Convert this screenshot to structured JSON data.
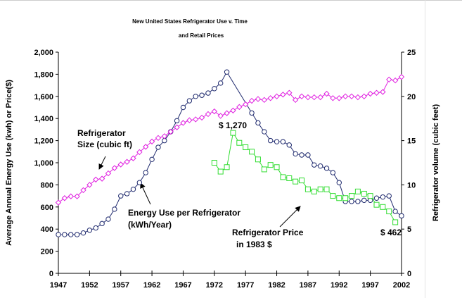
{
  "chart_data": {
    "type": "line",
    "title": [
      "New United States Refrigerator Use v. Time",
      "and Retail Prices"
    ],
    "y_label": "Average Annual Energy Use (kwh) or Price($)",
    "y2_label": "Refrigerator volume (cubic feet)",
    "xlim": [
      1947,
      2002
    ],
    "xticks": [
      1947,
      1952,
      1957,
      1962,
      1967,
      1972,
      1977,
      1982,
      1987,
      1992,
      1997,
      2002
    ],
    "ylim": [
      0,
      2000
    ],
    "yticks": [
      0,
      200,
      400,
      600,
      800,
      {
        "value": 1000,
        "label": "1,000"
      },
      {
        "value": 1200,
        "label": "1,200"
      },
      {
        "value": 1400,
        "label": "1,400"
      },
      {
        "value": 1600,
        "label": "1,600"
      },
      {
        "value": 1800,
        "label": "1,800"
      },
      {
        "value": 2000,
        "label": "2,000"
      }
    ],
    "y2lim": [
      0,
      25
    ],
    "y2ticks": [
      0,
      5,
      10,
      15,
      20,
      25
    ],
    "series": [
      {
        "name": "Energy Use per Refrigerator",
        "color": "#1f2a6e",
        "marker": "circle",
        "x": [
          1947,
          1948,
          1949,
          1950,
          1951,
          1952,
          1953,
          1954,
          1955,
          1956,
          1957,
          1958,
          1959,
          1960,
          1961,
          1962,
          1963,
          1964,
          1965,
          1966,
          1967,
          1968,
          1969,
          1970,
          1971,
          1972,
          1973,
          1974,
          1978,
          1979,
          1980,
          1981,
          1982,
          1983,
          1984,
          1985,
          1986,
          1987,
          1988,
          1989,
          1990,
          1991,
          1992,
          1993,
          1994,
          1995,
          1996,
          1997,
          1998,
          1999,
          2000,
          2001,
          2002
        ],
        "values": [
          350,
          350,
          350,
          350,
          365,
          390,
          410,
          450,
          490,
          580,
          700,
          720,
          760,
          820,
          910,
          1030,
          1140,
          1200,
          1280,
          1380,
          1500,
          1560,
          1600,
          1610,
          1630,
          1670,
          1720,
          1820,
          1450,
          1360,
          1280,
          1200,
          1190,
          1190,
          1160,
          1080,
          1070,
          1070,
          980,
          970,
          950,
          910,
          820,
          650,
          650,
          650,
          660,
          660,
          680,
          690,
          700,
          560,
          520
        ]
      },
      {
        "name": "Refrigerator Size (cubic ft)",
        "color": "#e020e0",
        "marker": "diamond",
        "axis": "y2",
        "x": [
          1947,
          1948,
          1949,
          1950,
          1951,
          1952,
          1953,
          1954,
          1955,
          1956,
          1957,
          1958,
          1959,
          1960,
          1961,
          1962,
          1963,
          1964,
          1965,
          1966,
          1967,
          1968,
          1969,
          1970,
          1971,
          1972,
          1973,
          1974,
          1975,
          1976,
          1977,
          1978,
          1979,
          1980,
          1981,
          1982,
          1983,
          1984,
          1985,
          1986,
          1987,
          1988,
          1989,
          1990,
          1991,
          1992,
          1993,
          1994,
          1995,
          1996,
          1997,
          1998,
          1999,
          2000,
          2001,
          2002
        ],
        "values": [
          8.0,
          8.5,
          8.7,
          8.7,
          9.4,
          10.0,
          10.6,
          10.7,
          11.3,
          11.9,
          12.3,
          12.6,
          13.0,
          13.7,
          14.3,
          14.9,
          15.3,
          15.5,
          16.0,
          16.5,
          17.0,
          17.3,
          17.4,
          17.6,
          18.0,
          18.3,
          17.8,
          18.1,
          18.4,
          18.8,
          19.1,
          19.5,
          19.7,
          19.6,
          19.8,
          20.0,
          20.2,
          20.4,
          19.6,
          20.0,
          19.9,
          19.9,
          19.9,
          20.3,
          19.8,
          19.8,
          20.0,
          20.0,
          19.9,
          20.0,
          20.3,
          20.4,
          20.5,
          21.9,
          21.8,
          22.2
        ]
      },
      {
        "name": "Refrigerator Price in 1983 $",
        "color": "#33dd33",
        "marker": "square",
        "x": [
          1972,
          1973,
          1974,
          1975,
          1976,
          1977,
          1978,
          1979,
          1980,
          1981,
          1982,
          1983,
          1984,
          1985,
          1986,
          1987,
          1988,
          1989,
          1990,
          1991,
          1992,
          1993,
          1994,
          1995,
          1996,
          1997,
          1998,
          1999,
          2000,
          2001
        ],
        "values": [
          1000,
          920,
          960,
          1270,
          1180,
          1140,
          1100,
          1030,
          940,
          980,
          960,
          870,
          860,
          830,
          840,
          760,
          740,
          760,
          760,
          700,
          680,
          680,
          700,
          740,
          720,
          700,
          620,
          600,
          560,
          462
        ]
      }
    ],
    "annotations": [
      "Refrigerator",
      "Size (cubic ft)",
      "Energy Use per Refrigerator",
      "(kWh/Year)",
      "Refrigerator Price",
      "in 1983 $",
      "$ 1,270",
      "$ 462"
    ]
  }
}
